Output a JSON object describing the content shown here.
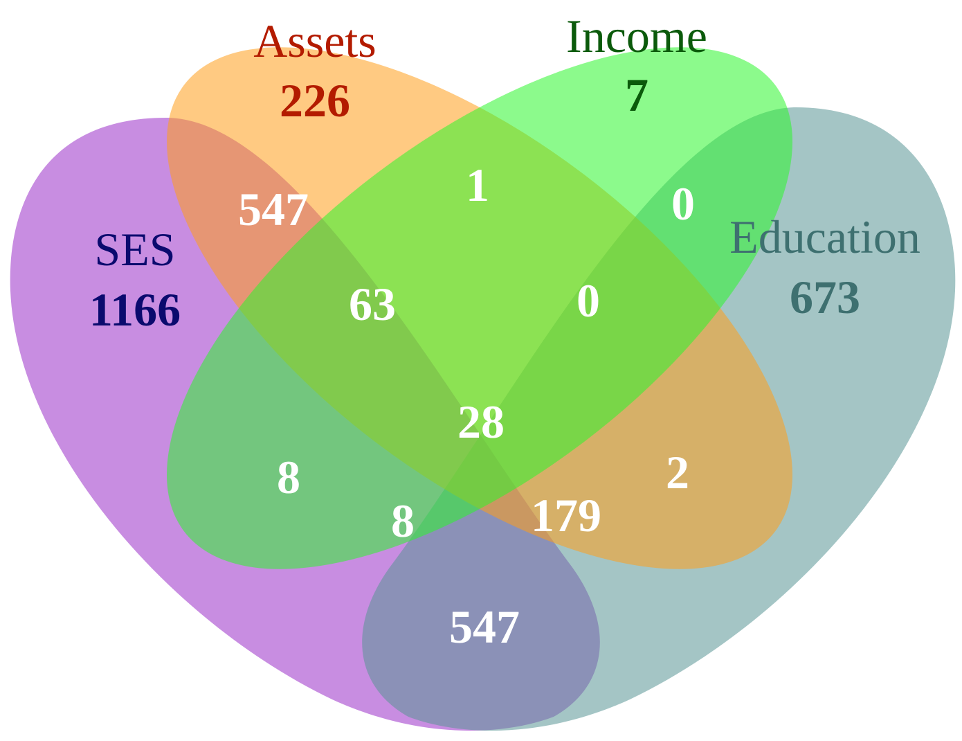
{
  "sets": [
    {
      "key": "ses",
      "name": "SES",
      "count": "1166",
      "fill": "#9b30c8",
      "text_color": "#0a0a6e"
    },
    {
      "key": "assets",
      "name": "Assets",
      "count": "226",
      "fill": "#ff9f1c",
      "text_color": "#b31b00"
    },
    {
      "key": "income",
      "name": "Income",
      "count": "7",
      "fill": "#2ef52e",
      "text_color": "#0b5a0b"
    },
    {
      "key": "education",
      "name": "Education",
      "count": "673",
      "fill": "#5a9696",
      "text_color": "#3e7070"
    }
  ],
  "regions": {
    "ses_assets": "547",
    "assets_income": "1",
    "income_education": "0",
    "ses_assets_income": "63",
    "assets_income_education": "0",
    "all": "28",
    "ses_income": "8",
    "ses_income_education": "8",
    "ses_assets_education": "179",
    "assets_education": "2",
    "ses_education": "547"
  }
}
